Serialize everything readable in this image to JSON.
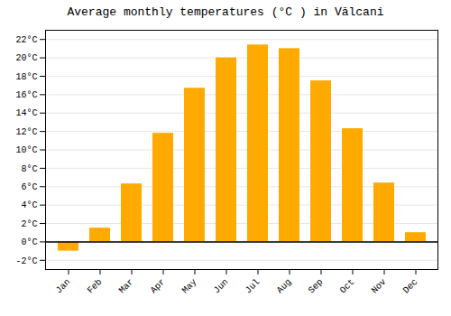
{
  "chart_data": {
    "type": "bar",
    "title": "Average monthly temperatures (°C ) in Vă​lcani",
    "categories": [
      "Jan",
      "Feb",
      "Mar",
      "Apr",
      "May",
      "Jun",
      "Jul",
      "Aug",
      "Sep",
      "Oct",
      "Nov",
      "Dec"
    ],
    "values": [
      -1.0,
      1.5,
      6.3,
      11.8,
      16.7,
      20.0,
      21.4,
      21.0,
      17.5,
      12.3,
      6.4,
      1.0
    ],
    "color": "#FFAA00",
    "ylim": [
      -3,
      23
    ],
    "yticks": [
      {
        "value": -2,
        "label": "-2°C"
      },
      {
        "value": 0,
        "label": "0°C"
      },
      {
        "value": 2,
        "label": "2°C"
      },
      {
        "value": 4,
        "label": "4°C"
      },
      {
        "value": 6,
        "label": "6°C"
      },
      {
        "value": 8,
        "label": "8°C"
      },
      {
        "value": 10,
        "label": "10°C"
      },
      {
        "value": 12,
        "label": "12°C"
      },
      {
        "value": 14,
        "label": "14°C"
      },
      {
        "value": 16,
        "label": "16°C"
      },
      {
        "value": 18,
        "label": "18°C"
      },
      {
        "value": 20,
        "label": "20°C"
      },
      {
        "value": 22,
        "label": "22°C"
      }
    ],
    "grid": true
  }
}
